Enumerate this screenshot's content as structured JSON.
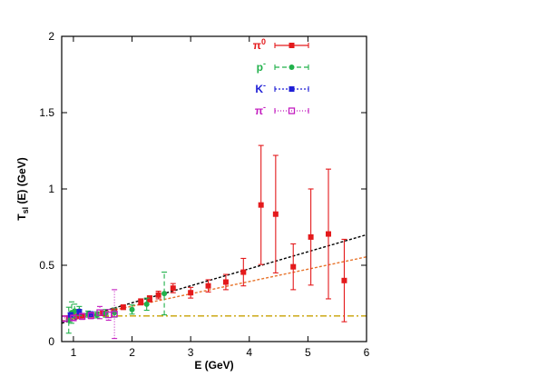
{
  "chart_data": {
    "type": "scatter",
    "xlabel": "E  (GeV)",
    "ylabel": "T",
    "ylabel_sub": "sl",
    "ylabel_tail": " (E)  (GeV)",
    "xlim": [
      0.8,
      6
    ],
    "ylim": [
      0,
      2
    ],
    "xticks": [
      {
        "value": 1,
        "label": "1"
      },
      {
        "value": 2,
        "label": "2"
      },
      {
        "value": 3,
        "label": "3"
      },
      {
        "value": 4,
        "label": "4"
      },
      {
        "value": 5,
        "label": "5"
      },
      {
        "value": 6,
        "label": "6"
      }
    ],
    "yticks": [
      {
        "value": 0,
        "label": "0"
      },
      {
        "value": 0.5,
        "label": "0.5"
      },
      {
        "value": 1,
        "label": "1"
      },
      {
        "value": 1.5,
        "label": "1.5"
      },
      {
        "value": 2,
        "label": "2"
      }
    ],
    "legend_position": "top-right",
    "series": [
      {
        "name": "π",
        "name_sup": "0",
        "color": "#e41a1c",
        "marker": "filled-square",
        "dash": "",
        "points": [
          {
            "x": 0.92,
            "y": 0.155,
            "err": 0.01
          },
          {
            "x": 1.05,
            "y": 0.165,
            "err": 0.01
          },
          {
            "x": 1.15,
            "y": 0.17,
            "err": 0.012
          },
          {
            "x": 1.3,
            "y": 0.175,
            "err": 0.012
          },
          {
            "x": 1.5,
            "y": 0.185,
            "err": 0.015
          },
          {
            "x": 1.7,
            "y": 0.205,
            "err": 0.015
          },
          {
            "x": 1.85,
            "y": 0.225,
            "err": 0.015
          },
          {
            "x": 2.15,
            "y": 0.26,
            "err": 0.02
          },
          {
            "x": 2.3,
            "y": 0.28,
            "err": 0.02
          },
          {
            "x": 2.45,
            "y": 0.305,
            "err": 0.025
          },
          {
            "x": 2.7,
            "y": 0.35,
            "err": 0.03
          },
          {
            "x": 3.0,
            "y": 0.32,
            "err": 0.035
          },
          {
            "x": 3.3,
            "y": 0.365,
            "err": 0.04
          },
          {
            "x": 3.6,
            "y": 0.39,
            "err": 0.05
          },
          {
            "x": 3.9,
            "y": 0.455,
            "err": 0.09
          },
          {
            "x": 4.2,
            "y": 0.895,
            "err": 0.39
          },
          {
            "x": 4.45,
            "y": 0.835,
            "err": 0.385
          },
          {
            "x": 4.75,
            "y": 0.49,
            "err": 0.15
          },
          {
            "x": 5.05,
            "y": 0.685,
            "err": 0.315
          },
          {
            "x": 5.35,
            "y": 0.705,
            "err": 0.425
          },
          {
            "x": 5.62,
            "y": 0.4,
            "err": 0.27
          }
        ]
      },
      {
        "name": "p",
        "name_sup": "-",
        "color": "#21b14b",
        "marker": "filled-circle",
        "dash": "5,3",
        "points": [
          {
            "x": 0.92,
            "y": 0.14,
            "err": 0.085
          },
          {
            "x": 0.97,
            "y": 0.19,
            "err": 0.07
          },
          {
            "x": 1.02,
            "y": 0.2,
            "err": 0.045
          },
          {
            "x": 1.1,
            "y": 0.2,
            "err": 0.03
          },
          {
            "x": 1.25,
            "y": 0.18,
            "err": 0.02
          },
          {
            "x": 1.4,
            "y": 0.175,
            "err": 0.02
          },
          {
            "x": 1.55,
            "y": 0.185,
            "err": 0.025
          },
          {
            "x": 1.7,
            "y": 0.19,
            "err": 0.03
          },
          {
            "x": 2.0,
            "y": 0.21,
            "err": 0.03
          },
          {
            "x": 2.25,
            "y": 0.245,
            "err": 0.04
          },
          {
            "x": 2.55,
            "y": 0.315,
            "err": 0.14
          }
        ]
      },
      {
        "name": "K",
        "name_sup": "-",
        "color": "#1f1fd6",
        "marker": "filled-square",
        "dash": "2,2",
        "points": [
          {
            "x": 0.95,
            "y": 0.175,
            "err": 0.012
          },
          {
            "x": 1.1,
            "y": 0.195,
            "err": 0.015
          },
          {
            "x": 1.3,
            "y": 0.18,
            "err": 0.015
          }
        ]
      },
      {
        "name": "π",
        "name_sup": "-",
        "color": "#c31cbf",
        "marker": "open-square",
        "dash": "1,2",
        "points": [
          {
            "x": 0.85,
            "y": 0.15,
            "err": 0.015
          },
          {
            "x": 1.0,
            "y": 0.155,
            "err": 0.015
          },
          {
            "x": 1.15,
            "y": 0.165,
            "err": 0.02
          },
          {
            "x": 1.3,
            "y": 0.17,
            "err": 0.02
          },
          {
            "x": 1.45,
            "y": 0.19,
            "err": 0.04
          },
          {
            "x": 1.6,
            "y": 0.175,
            "err": 0.035
          },
          {
            "x": 1.7,
            "y": 0.18,
            "err": 0.16
          }
        ]
      }
    ],
    "fit_lines": [
      {
        "color": "#000000",
        "dash": "3,2",
        "x": [
          0.8,
          6
        ],
        "y": [
          0.12,
          0.7
        ]
      },
      {
        "color": "#e8742c",
        "dash": "3,2",
        "x": [
          0.8,
          6
        ],
        "y": [
          0.135,
          0.555
        ]
      },
      {
        "color": "#c8a000",
        "dash": "7,3,2,3",
        "x": [
          0.8,
          6
        ],
        "y": [
          0.168,
          0.168
        ]
      }
    ]
  }
}
